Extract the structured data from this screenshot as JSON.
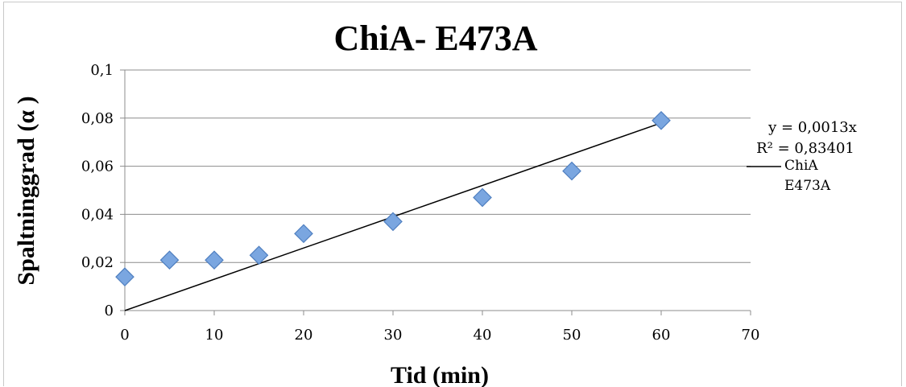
{
  "chart_data": {
    "type": "scatter",
    "title": "ChiA- E473A",
    "xlabel": "Tid (min)",
    "ylabel": "Spaltninggrad (α )",
    "xlim": [
      0,
      70
    ],
    "ylim": [
      0,
      0.1
    ],
    "x_ticks": [
      "0",
      "10",
      "20",
      "30",
      "40",
      "50",
      "60",
      "70"
    ],
    "y_ticks": [
      "0",
      "0,02",
      "0,04",
      "0,06",
      "0,08",
      "0,1"
    ],
    "grid": "horizontal",
    "series": [
      {
        "name": "ChiA E473A",
        "x": [
          0,
          5,
          10,
          15,
          20,
          30,
          40,
          50,
          60
        ],
        "y": [
          0.014,
          0.021,
          0.021,
          0.023,
          0.032,
          0.037,
          0.047,
          0.058,
          0.079
        ],
        "marker": "diamond",
        "color": "#7aa6e0",
        "marker_edge": "#4f7fc0"
      }
    ],
    "trendline": {
      "type": "linear",
      "slope": 0.0013,
      "intercept": 0,
      "x_range": [
        0,
        60
      ],
      "color": "#000000",
      "equation": "y = 0,0013x",
      "r2_label": "R² = 0,83401",
      "legend_label_line1": "ChiA",
      "legend_label_line2": "E473A"
    }
  }
}
